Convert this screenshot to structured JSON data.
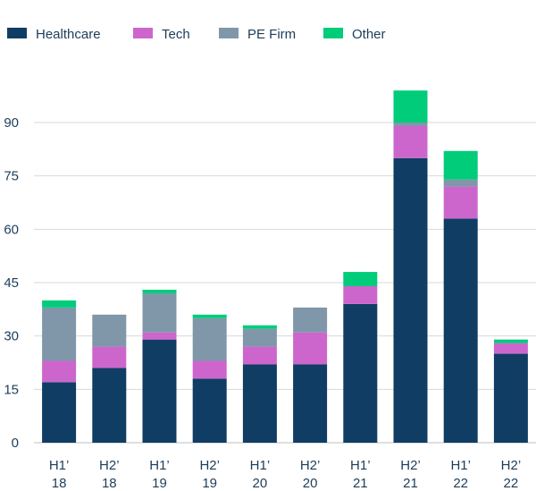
{
  "chart_data": {
    "type": "bar",
    "stacked": true,
    "title": "",
    "xlabel": "",
    "ylabel": "",
    "ylim": [
      0,
      100
    ],
    "yticks": [
      0,
      15,
      30,
      45,
      60,
      75,
      90
    ],
    "grid": true,
    "legend_position": "top-left",
    "categories": [
      [
        "H1’",
        "18"
      ],
      [
        "H2’",
        "18"
      ],
      [
        "H1’",
        "19"
      ],
      [
        "H2’",
        "19"
      ],
      [
        "H1’",
        "20"
      ],
      [
        "H2’",
        "20"
      ],
      [
        "H1’",
        "21"
      ],
      [
        "H2’",
        "21"
      ],
      [
        "H1’",
        "22"
      ],
      [
        "H2’",
        "22"
      ]
    ],
    "series": [
      {
        "name": "Healthcare",
        "color": "#0f3d63",
        "values": [
          17,
          21,
          29,
          18,
          22,
          22,
          39,
          80,
          63,
          25
        ]
      },
      {
        "name": "Tech",
        "color": "#cc66cc",
        "values": [
          6,
          6,
          2,
          5,
          5,
          9,
          5,
          9,
          9,
          3
        ]
      },
      {
        "name": "PE Firm",
        "color": "#8097aa",
        "values": [
          15,
          9,
          11,
          12,
          5,
          7,
          0,
          1,
          2,
          0
        ]
      },
      {
        "name": "Other",
        "color": "#00cc7a",
        "values": [
          2,
          0,
          1,
          1,
          1,
          0,
          4,
          9,
          8,
          1
        ]
      }
    ]
  }
}
